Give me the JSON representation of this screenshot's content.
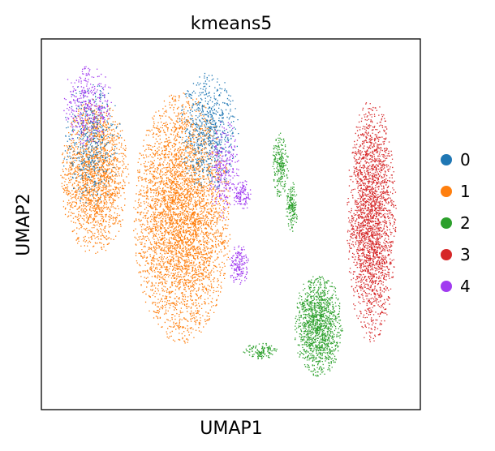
{
  "chart_data": {
    "type": "scatter",
    "title": "kmeans5",
    "xlabel": "UMAP1",
    "ylabel": "UMAP2",
    "xlim": [
      0,
      100
    ],
    "ylim": [
      0,
      100
    ],
    "grid": false,
    "ticks": false,
    "legend_position": "right",
    "series": [
      {
        "name": "0",
        "color": "#1f77b4"
      },
      {
        "name": "1",
        "color": "#ff7f0e"
      },
      {
        "name": "2",
        "color": "#2ca02c"
      },
      {
        "name": "3",
        "color": "#d62728"
      },
      {
        "name": "4",
        "color": "#a13bf0"
      }
    ],
    "clusters": [
      {
        "series": "1",
        "cx": 14,
        "cy": 63,
        "rx": 9,
        "ry": 21,
        "n": 1800
      },
      {
        "series": "0",
        "cx": 13,
        "cy": 72,
        "rx": 8,
        "ry": 17,
        "n": 500
      },
      {
        "series": "4",
        "cx": 12,
        "cy": 82,
        "rx": 7,
        "ry": 11,
        "n": 350
      },
      {
        "series": "1",
        "cx": 37,
        "cy": 52,
        "rx": 13,
        "ry": 34,
        "n": 4200
      },
      {
        "series": "0",
        "cx": 44,
        "cy": 75,
        "rx": 8,
        "ry": 16,
        "n": 700
      },
      {
        "series": "4",
        "cx": 48,
        "cy": 65,
        "rx": 4,
        "ry": 14,
        "n": 260
      },
      {
        "series": "4",
        "cx": 52,
        "cy": 39,
        "rx": 2.6,
        "ry": 6,
        "n": 160
      },
      {
        "series": "4",
        "cx": 53,
        "cy": 58,
        "rx": 2.5,
        "ry": 4,
        "n": 110
      },
      {
        "series": "2",
        "cx": 63,
        "cy": 66,
        "rx": 2.2,
        "ry": 9,
        "n": 230
      },
      {
        "series": "2",
        "cx": 66,
        "cy": 55,
        "rx": 1.6,
        "ry": 7,
        "n": 160
      },
      {
        "series": "2",
        "cx": 73,
        "cy": 23,
        "rx": 6.5,
        "ry": 14,
        "n": 1300
      },
      {
        "series": "2",
        "cx": 58,
        "cy": 16,
        "rx": 5,
        "ry": 2.2,
        "n": 120
      },
      {
        "series": "3",
        "cx": 87,
        "cy": 51,
        "rx": 6.5,
        "ry": 33,
        "n": 2400
      }
    ]
  }
}
